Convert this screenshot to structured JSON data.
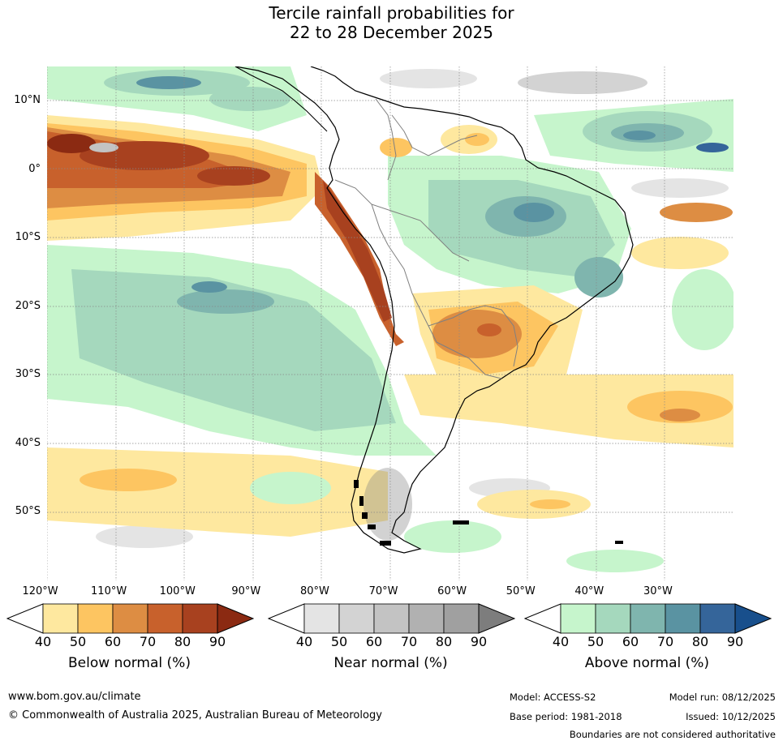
{
  "title_line1": "Tercile rainfall probabilities for",
  "title_line2": "22 to 28 December 2025",
  "map": {
    "lat_labels": [
      "10°N",
      "0°",
      "10°S",
      "20°S",
      "30°S",
      "40°S",
      "50°S"
    ],
    "lat_values": [
      10,
      0,
      -10,
      -20,
      -30,
      -40,
      -50
    ],
    "lon_labels": [
      "120°W",
      "110°W",
      "100°W",
      "90°W",
      "80°W",
      "70°W",
      "60°W",
      "50°W",
      "40°W",
      "30°W"
    ],
    "lon_values": [
      -120,
      -110,
      -100,
      -90,
      -80,
      -70,
      -60,
      -50,
      -40,
      -30
    ],
    "extent": {
      "lon_min": -119,
      "lon_max": -19,
      "lat_min": -60,
      "lat_max": 15
    }
  },
  "legend": [
    {
      "title": "Below normal (%)",
      "ticks": [
        "40",
        "50",
        "60",
        "70",
        "80",
        "90"
      ],
      "colors": [
        "#fee89f",
        "#fdc561",
        "#dd8d43",
        "#c8612c",
        "#a8411f",
        "#8b2a12"
      ]
    },
    {
      "title": "Near normal (%)",
      "ticks": [
        "40",
        "50",
        "60",
        "70",
        "80",
        "90"
      ],
      "colors": [
        "#e4e4e4",
        "#d3d3d3",
        "#c3c3c3",
        "#b1b1b1",
        "#a0a0a0",
        "#7d7d7d"
      ]
    },
    {
      "title": "Above normal (%)",
      "ticks": [
        "40",
        "50",
        "60",
        "70",
        "80",
        "90"
      ],
      "colors": [
        "#c6f5cc",
        "#a5d8bd",
        "#7fb5ae",
        "#5a93a2",
        "#35659a",
        "#184f8c"
      ]
    }
  ],
  "footer": {
    "website": "www.bom.gov.au/climate",
    "copyright": "© Commonwealth of Australia 2025, Australian Bureau of Meteorology",
    "model": "Model: ACCESS-S2",
    "base_period": "Base period: 1981-2018",
    "model_run": "Model run: 08/12/2025",
    "issued": "Issued: 10/12/2025",
    "disclaimer": "Boundaries are not considered authoritative"
  }
}
